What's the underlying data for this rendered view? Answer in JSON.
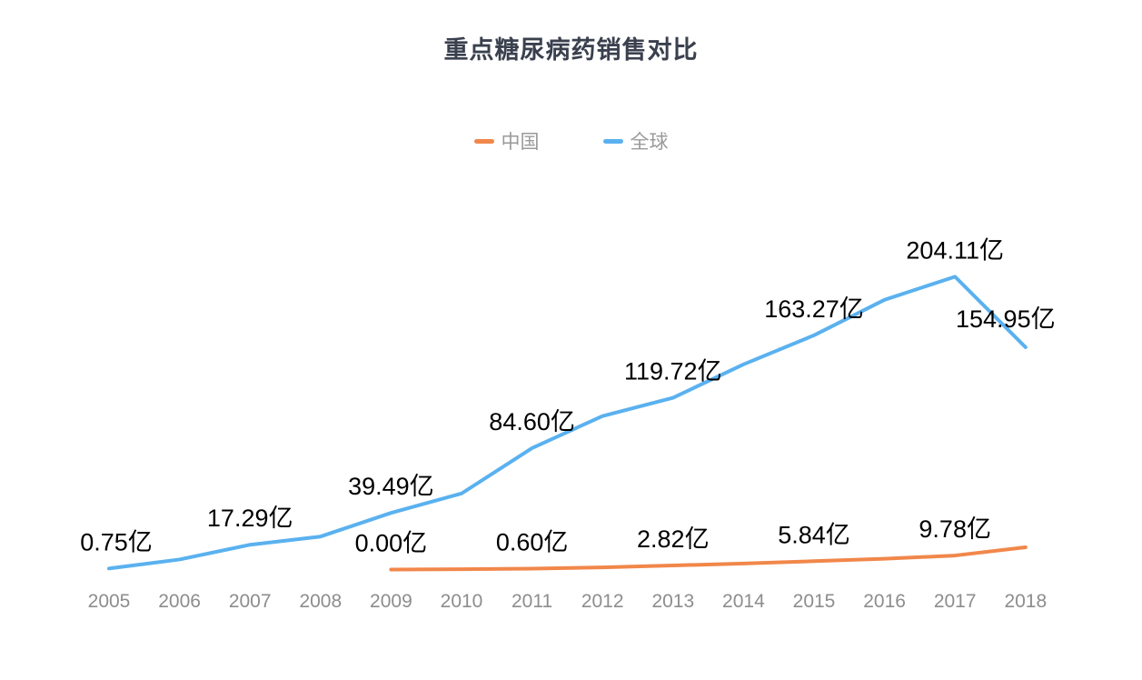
{
  "title": "重点糖尿病药销售对比",
  "colors": {
    "china_series": "#f1874a",
    "global_series": "#5ab1ef",
    "title_text": "#3a404e",
    "axis_text": "#8d8d8d",
    "legend_text": "#9a9a9a",
    "data_label_text": "#000000",
    "background": "#ffffff"
  },
  "chart_data": {
    "type": "line",
    "title": "重点糖尿病药销售对比",
    "xlabel": "",
    "ylabel": "",
    "unit": "亿",
    "grid": false,
    "legend_position": "top-center",
    "categories": [
      "2005",
      "2006",
      "2007",
      "2008",
      "2009",
      "2010",
      "2011",
      "2012",
      "2013",
      "2014",
      "2015",
      "2016",
      "2017",
      "2018"
    ],
    "ylim": [
      0,
      220
    ],
    "series": [
      {
        "key": "china",
        "name": "中国",
        "color": "#f1874a",
        "values": [
          null,
          null,
          null,
          null,
          0.0,
          0.2,
          0.6,
          1.5,
          2.82,
          4.2,
          5.84,
          7.5,
          9.78,
          15.5
        ],
        "labels": [
          null,
          null,
          null,
          null,
          "0.00亿",
          null,
          "0.60亿",
          null,
          "2.82亿",
          null,
          "5.84亿",
          null,
          "9.78亿",
          null
        ],
        "estimated_indices": [
          5,
          7,
          9,
          11,
          13
        ]
      },
      {
        "key": "global",
        "name": "全球",
        "color": "#5ab1ef",
        "values": [
          0.75,
          7.0,
          17.29,
          23.0,
          39.49,
          53.0,
          84.6,
          107.0,
          119.72,
          143.0,
          163.27,
          188.0,
          204.11,
          154.95
        ],
        "labels": [
          "0.75亿",
          null,
          "17.29亿",
          null,
          "39.49亿",
          null,
          "84.60亿",
          null,
          "119.72亿",
          null,
          "163.27亿",
          null,
          "204.11亿",
          "154.95亿"
        ],
        "estimated_indices": [
          1,
          3,
          5,
          7,
          9,
          11
        ]
      }
    ]
  }
}
